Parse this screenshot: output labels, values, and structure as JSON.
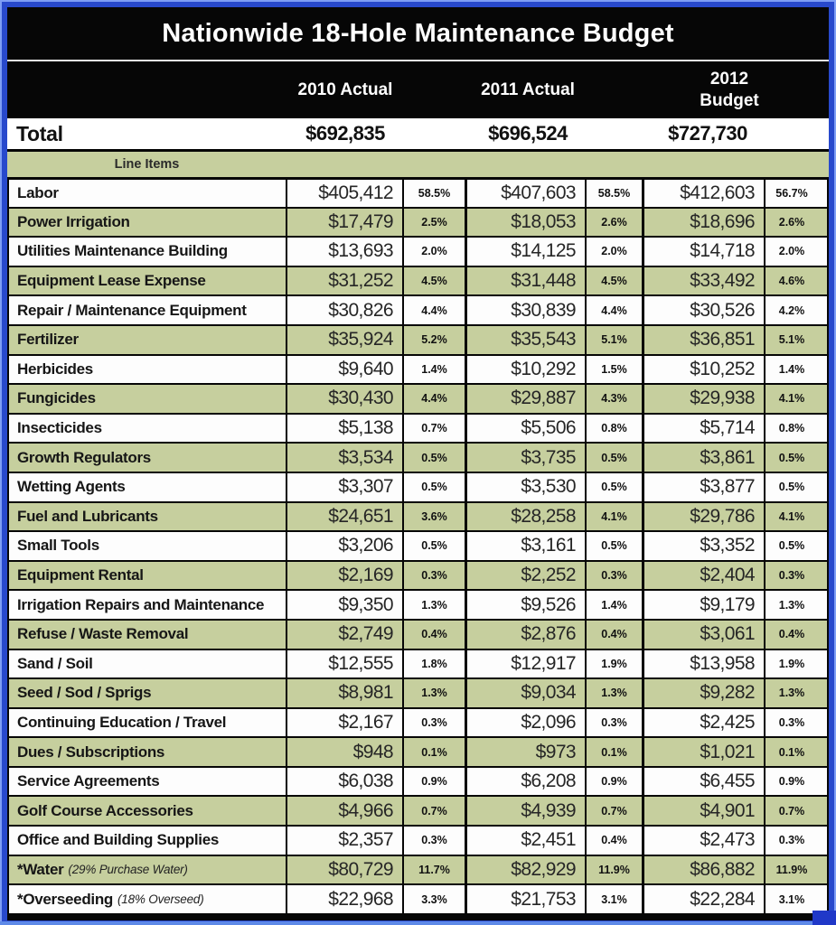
{
  "title": "Nationwide 18-Hole Maintenance Budget",
  "header": {
    "col_2010": "2010 Actual",
    "col_2011": "2011 Actual",
    "col_2012_line1": "2012",
    "col_2012_line2": "Budget"
  },
  "total": {
    "label": "Total",
    "v2010": "$692,835",
    "v2011": "$696,524",
    "v2012": "$727,730"
  },
  "section_label": "Line Items",
  "rows": [
    {
      "label": "Labor",
      "note": "",
      "v2010": "$405,412",
      "p2010": "58.5%",
      "v2011": "$407,603",
      "p2011": "58.5%",
      "v2012": "$412,603",
      "p2012": "56.7%"
    },
    {
      "label": "Power Irrigation",
      "note": "",
      "v2010": "$17,479",
      "p2010": "2.5%",
      "v2011": "$18,053",
      "p2011": "2.6%",
      "v2012": "$18,696",
      "p2012": "2.6%"
    },
    {
      "label": "Utilities Maintenance Building",
      "note": "",
      "v2010": "$13,693",
      "p2010": "2.0%",
      "v2011": "$14,125",
      "p2011": "2.0%",
      "v2012": "$14,718",
      "p2012": "2.0%"
    },
    {
      "label": "Equipment Lease Expense",
      "note": "",
      "v2010": "$31,252",
      "p2010": "4.5%",
      "v2011": "$31,448",
      "p2011": "4.5%",
      "v2012": "$33,492",
      "p2012": "4.6%"
    },
    {
      "label": "Repair / Maintenance Equipment",
      "note": "",
      "v2010": "$30,826",
      "p2010": "4.4%",
      "v2011": "$30,839",
      "p2011": "4.4%",
      "v2012": "$30,526",
      "p2012": "4.2%"
    },
    {
      "label": "Fertilizer",
      "note": "",
      "v2010": "$35,924",
      "p2010": "5.2%",
      "v2011": "$35,543",
      "p2011": "5.1%",
      "v2012": "$36,851",
      "p2012": "5.1%"
    },
    {
      "label": "Herbicides",
      "note": "",
      "v2010": "$9,640",
      "p2010": "1.4%",
      "v2011": "$10,292",
      "p2011": "1.5%",
      "v2012": "$10,252",
      "p2012": "1.4%"
    },
    {
      "label": "Fungicides",
      "note": "",
      "v2010": "$30,430",
      "p2010": "4.4%",
      "v2011": "$29,887",
      "p2011": "4.3%",
      "v2012": "$29,938",
      "p2012": "4.1%"
    },
    {
      "label": "Insecticides",
      "note": "",
      "v2010": "$5,138",
      "p2010": "0.7%",
      "v2011": "$5,506",
      "p2011": "0.8%",
      "v2012": "$5,714",
      "p2012": "0.8%"
    },
    {
      "label": "Growth Regulators",
      "note": "",
      "v2010": "$3,534",
      "p2010": "0.5%",
      "v2011": "$3,735",
      "p2011": "0.5%",
      "v2012": "$3,861",
      "p2012": "0.5%"
    },
    {
      "label": "Wetting Agents",
      "note": "",
      "v2010": "$3,307",
      "p2010": "0.5%",
      "v2011": "$3,530",
      "p2011": "0.5%",
      "v2012": "$3,877",
      "p2012": "0.5%"
    },
    {
      "label": "Fuel and Lubricants",
      "note": "",
      "v2010": "$24,651",
      "p2010": "3.6%",
      "v2011": "$28,258",
      "p2011": "4.1%",
      "v2012": "$29,786",
      "p2012": "4.1%"
    },
    {
      "label": "Small Tools",
      "note": "",
      "v2010": "$3,206",
      "p2010": "0.5%",
      "v2011": "$3,161",
      "p2011": "0.5%",
      "v2012": "$3,352",
      "p2012": "0.5%"
    },
    {
      "label": "Equipment Rental",
      "note": "",
      "v2010": "$2,169",
      "p2010": "0.3%",
      "v2011": "$2,252",
      "p2011": "0.3%",
      "v2012": "$2,404",
      "p2012": "0.3%"
    },
    {
      "label": "Irrigation Repairs and Maintenance",
      "note": "",
      "v2010": "$9,350",
      "p2010": "1.3%",
      "v2011": "$9,526",
      "p2011": "1.4%",
      "v2012": "$9,179",
      "p2012": "1.3%"
    },
    {
      "label": "Refuse / Waste Removal",
      "note": "",
      "v2010": "$2,749",
      "p2010": "0.4%",
      "v2011": "$2,876",
      "p2011": "0.4%",
      "v2012": "$3,061",
      "p2012": "0.4%"
    },
    {
      "label": "Sand / Soil",
      "note": "",
      "v2010": "$12,555",
      "p2010": "1.8%",
      "v2011": "$12,917",
      "p2011": "1.9%",
      "v2012": "$13,958",
      "p2012": "1.9%"
    },
    {
      "label": "Seed / Sod / Sprigs",
      "note": "",
      "v2010": "$8,981",
      "p2010": "1.3%",
      "v2011": "$9,034",
      "p2011": "1.3%",
      "v2012": "$9,282",
      "p2012": "1.3%"
    },
    {
      "label": "Continuing Education / Travel",
      "note": "",
      "v2010": "$2,167",
      "p2010": "0.3%",
      "v2011": "$2,096",
      "p2011": "0.3%",
      "v2012": "$2,425",
      "p2012": "0.3%"
    },
    {
      "label": "Dues / Subscriptions",
      "note": "",
      "v2010": "$948",
      "p2010": "0.1%",
      "v2011": "$973",
      "p2011": "0.1%",
      "v2012": "$1,021",
      "p2012": "0.1%"
    },
    {
      "label": "Service Agreements",
      "note": "",
      "v2010": "$6,038",
      "p2010": "0.9%",
      "v2011": "$6,208",
      "p2011": "0.9%",
      "v2012": "$6,455",
      "p2012": "0.9%"
    },
    {
      "label": "Golf Course Accessories",
      "note": "",
      "v2010": "$4,966",
      "p2010": "0.7%",
      "v2011": "$4,939",
      "p2011": "0.7%",
      "v2012": "$4,901",
      "p2012": "0.7%"
    },
    {
      "label": "Office and Building Supplies",
      "note": "",
      "v2010": "$2,357",
      "p2010": "0.3%",
      "v2011": "$2,451",
      "p2011": "0.4%",
      "v2012": "$2,473",
      "p2012": "0.3%"
    },
    {
      "label": "*Water",
      "note": "(29% Purchase Water)",
      "v2010": "$80,729",
      "p2010": "11.7%",
      "v2011": "$82,929",
      "p2011": "11.9%",
      "v2012": "$86,882",
      "p2012": "11.9%"
    },
    {
      "label": "*Overseeding",
      "note": "(18% Overseed)",
      "v2010": "$22,968",
      "p2010": "3.3%",
      "v2011": "$21,753",
      "p2011": "3.1%",
      "v2012": "$22,284",
      "p2012": "3.1%"
    }
  ],
  "colors": {
    "stripe_green": "#c6cf9e",
    "band_black": "#060606",
    "frame_blue": "#2849cc",
    "frame_blue_light": "#7e9ef5"
  }
}
